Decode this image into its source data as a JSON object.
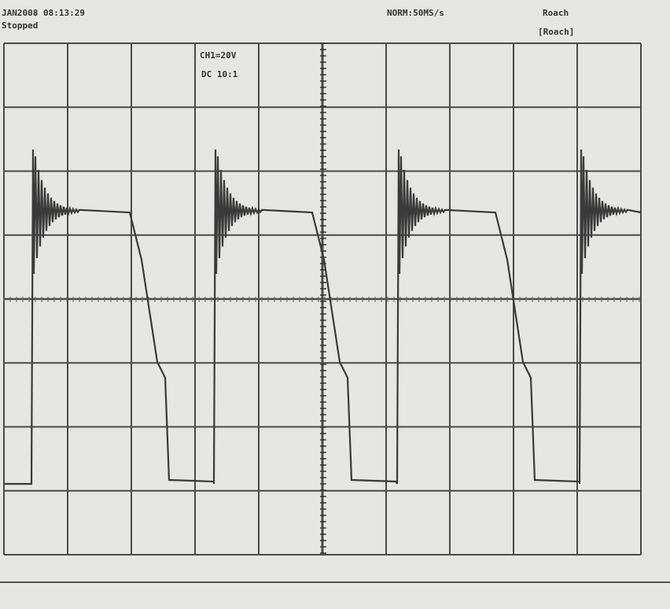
{
  "header": {
    "left_top": "JAN2008 08:13:29",
    "left_bottom": "Stopped",
    "center": "NORM:50MS/s",
    "right_top": "Roach",
    "right_bottom": "[Roach]"
  },
  "channel": {
    "scale": "CH1=20V",
    "coupling": "DC 10:1"
  }
}
